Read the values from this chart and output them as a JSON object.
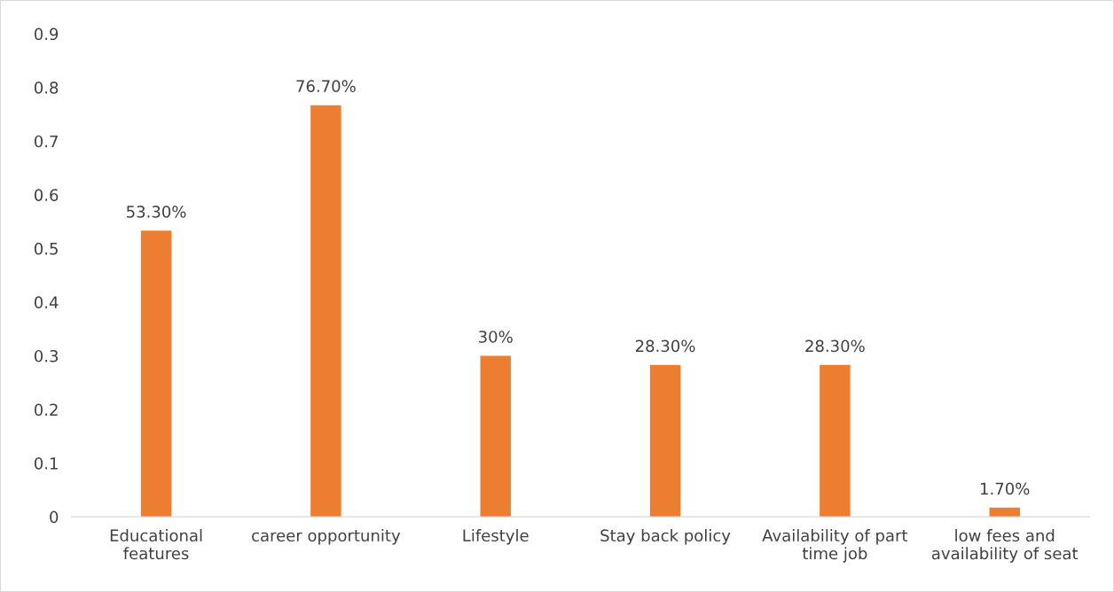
{
  "chart_data": {
    "type": "bar",
    "categories": [
      "Educational\nfeatures",
      "career opportunity",
      "Lifestyle",
      "Stay back policy",
      "Availability of part\ntime job",
      "low fees and\navailability of seat"
    ],
    "values": [
      0.533,
      0.767,
      0.3,
      0.283,
      0.283,
      0.017
    ],
    "value_labels": [
      "53.30%",
      "76.70%",
      "30%",
      "28.30%",
      "28.30%",
      "1.70%"
    ],
    "color": "#ed7d31",
    "ylim": [
      0,
      0.9
    ],
    "yticks": [
      0,
      0.1,
      0.2,
      0.3,
      0.4,
      0.5,
      0.6,
      0.7,
      0.8,
      0.9
    ],
    "grid": false,
    "legend": false
  }
}
